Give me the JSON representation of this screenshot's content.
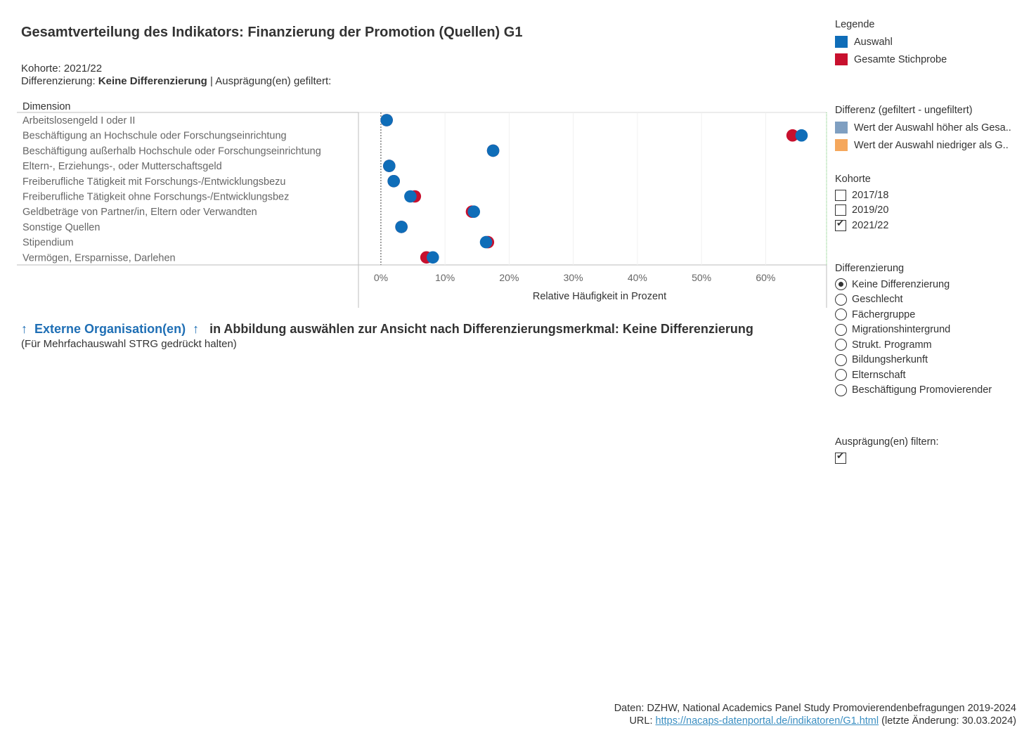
{
  "title": "Gesamtverteilung des Indikators: Finanzierung der Promotion (Quellen) G1",
  "subtitle": {
    "kohorte": "Kohorte: 2021/22",
    "diff_prefix": "Differenzierung: ",
    "diff_value": "Keine Differenzierung",
    "diff_suffix": " | Ausprägung(en) gefiltert:"
  },
  "chart_data": {
    "type": "scatter",
    "title": "",
    "row_header": "Dimension",
    "xlabel": "Relative Häufigkeit in Prozent",
    "xlim": [
      -3.5,
      69.5
    ],
    "xticks": [
      0,
      10,
      20,
      30,
      40,
      50,
      60
    ],
    "xtick_labels": [
      "0%",
      "10%",
      "20%",
      "30%",
      "40%",
      "50%",
      "60%"
    ],
    "reference_line": 0,
    "grid": true,
    "categories": [
      "Arbeitslosengeld I oder II",
      "Beschäftigung an Hochschule oder Forschungseinrichtung",
      "Beschäftigung außerhalb Hochschule oder Forschungseinrichtung",
      "Eltern-, Erziehungs-, oder Mutterschaftsgeld",
      "Freiberufliche Tätigkeit mit Forschungs-/Entwicklungsbezu",
      "Freiberufliche Tätigkeit ohne Forschungs-/Entwicklungsbez",
      "Geldbeträge von Partner/in, Eltern oder Verwandten",
      "Sonstige Quellen",
      "Stipendium",
      "Vermögen, Ersparnisse, Darlehen"
    ],
    "series": [
      {
        "name": "Gesamte Stichprobe",
        "color": "#c8102e",
        "values": [
          0.9,
          64.2,
          17.5,
          1.3,
          2.0,
          5.3,
          14.2,
          3.2,
          16.7,
          7.1
        ]
      },
      {
        "name": "Auswahl",
        "color": "#0f6db8",
        "values": [
          0.9,
          65.6,
          17.5,
          1.3,
          2.0,
          4.6,
          14.5,
          3.2,
          16.4,
          8.1
        ]
      }
    ]
  },
  "prompt": {
    "arrow_left": "↑",
    "link": "Externe Organisation(en)",
    "arrow_right": "↑",
    "text": "in Abbildung auswählen zur Ansicht nach Differenzierungsmerkmal: Keine Differenzierung",
    "hint": "(Für Mehrfachauswahl STRG gedrückt halten)"
  },
  "legend": {
    "title": "Legende",
    "items": [
      {
        "label": "Auswahl",
        "color": "#0f6db8"
      },
      {
        "label": "Gesamte Stichprobe",
        "color": "#c8102e"
      }
    ]
  },
  "difference": {
    "title": "Differenz (gefiltert - ungefiltert)",
    "items": [
      {
        "label": "Wert der Auswahl höher als Gesa..",
        "color": "#7f9fc1"
      },
      {
        "label": "Wert der Auswahl niedriger als G..",
        "color": "#f5a75c"
      }
    ]
  },
  "kohorte": {
    "title": "Kohorte",
    "options": [
      {
        "label": "2017/18",
        "checked": false
      },
      {
        "label": "2019/20",
        "checked": false
      },
      {
        "label": "2021/22",
        "checked": true
      }
    ]
  },
  "differenzierung": {
    "title": "Differenzierung",
    "options": [
      {
        "label": "Keine Differenzierung",
        "selected": true
      },
      {
        "label": "Geschlecht",
        "selected": false
      },
      {
        "label": "Fächergruppe",
        "selected": false
      },
      {
        "label": "Migrationshintergrund",
        "selected": false
      },
      {
        "label": "Strukt. Programm",
        "selected": false
      },
      {
        "label": "Bildungsherkunft",
        "selected": false
      },
      {
        "label": "Elternschaft",
        "selected": false
      },
      {
        "label": "Beschäftigung Promovierender",
        "selected": false
      }
    ]
  },
  "filter": {
    "title": "Ausprägung(en) filtern:",
    "checked": true
  },
  "footer": {
    "line1": "Daten: DZHW, National Academics Panel Study Promovierendenbefragungen 2019-2024",
    "url_prefix": "URL: ",
    "url": "https://nacaps-datenportal.de/indikatoren/G1.html",
    "url_suffix": " (letzte Änderung: 30.03.2024)"
  }
}
